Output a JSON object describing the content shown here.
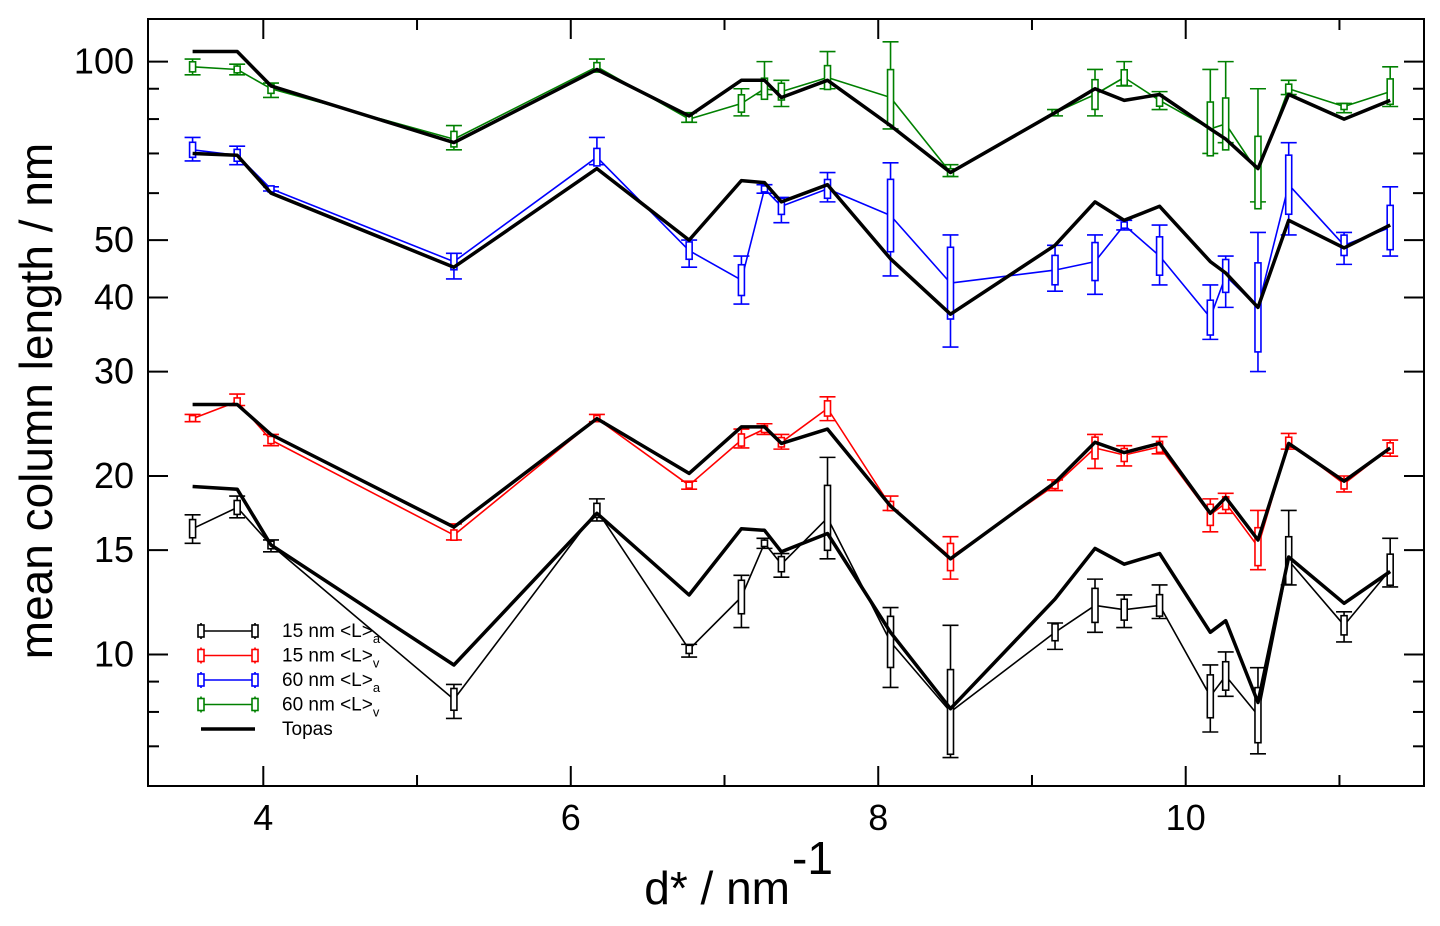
{
  "chart_data": {
    "type": "line",
    "title": "",
    "xlabel": "d* / nm",
    "xlabel_sup": "-1",
    "ylabel": "mean column length / nm",
    "xlim": [
      3.25,
      11.55
    ],
    "ylim": [
      6.0,
      118.0
    ],
    "yscale": "log",
    "grid": false,
    "legend_position": "bottom-left",
    "x_ticks": [
      4,
      6,
      8,
      10
    ],
    "y_ticks": [
      10,
      15,
      20,
      30,
      40,
      50,
      100
    ],
    "x_minor_ticks": [
      5,
      7,
      9,
      11
    ],
    "y_minor_ticks": [
      7,
      8,
      9,
      60,
      70,
      80,
      90
    ],
    "series": [
      {
        "name": "15 nm <L>a",
        "label": "15 nm <L>",
        "subscript": "a",
        "color": "#000000",
        "style": "errorbar",
        "x": [
          3.54,
          3.83,
          4.05,
          5.24,
          6.17,
          6.77,
          7.11,
          7.26,
          7.37,
          7.67,
          8.08,
          8.47,
          9.15,
          9.41,
          9.6,
          9.83,
          10.16,
          10.26,
          10.47,
          10.67,
          11.03,
          11.33
        ],
        "y": [
          16.3,
          17.7,
          15.3,
          8.4,
          17.5,
          10.2,
          12.5,
          15.4,
          14.2,
          17.0,
          10.5,
          8.0,
          10.9,
          12.1,
          11.9,
          12.1,
          8.5,
          9.2,
          7.9,
          14.4,
          11.2,
          13.9
        ],
        "err_low": [
          15.4,
          17.0,
          14.9,
          7.8,
          16.8,
          9.9,
          11.1,
          15.1,
          13.5,
          14.5,
          8.8,
          6.7,
          10.2,
          10.9,
          11.1,
          11.5,
          7.4,
          8.5,
          6.8,
          13.1,
          10.5,
          13.0
        ],
        "err_high": [
          17.2,
          18.5,
          15.6,
          8.9,
          18.3,
          10.4,
          13.6,
          15.7,
          14.8,
          21.5,
          12.0,
          11.2,
          11.3,
          13.4,
          12.6,
          13.1,
          9.6,
          10.1,
          9.5,
          17.5,
          11.8,
          15.7
        ]
      },
      {
        "name": "15 nm <L>v",
        "label": "15 nm <L>",
        "subscript": "v",
        "color": "#ff0000",
        "style": "errorbar",
        "x": [
          3.54,
          3.83,
          4.05,
          5.24,
          6.17,
          6.77,
          7.11,
          7.26,
          7.37,
          7.67,
          8.08,
          8.47,
          9.15,
          9.41,
          9.6,
          9.83,
          10.16,
          10.26,
          10.47,
          10.67,
          11.03,
          11.33
        ],
        "y": [
          25.0,
          26.7,
          23.0,
          15.9,
          25.0,
          19.3,
          23.0,
          24.0,
          22.8,
          26.0,
          17.8,
          14.6,
          19.3,
          22.3,
          21.7,
          22.4,
          17.2,
          18.0,
          15.2,
          22.8,
          19.4,
          22.3
        ],
        "err_low": [
          24.7,
          26.3,
          22.5,
          15.6,
          24.7,
          19.0,
          22.3,
          23.5,
          22.2,
          24.8,
          17.5,
          13.4,
          18.9,
          20.6,
          20.8,
          21.8,
          16.1,
          17.3,
          13.9,
          22.2,
          18.8,
          21.6
        ],
        "err_high": [
          25.4,
          27.5,
          23.5,
          16.6,
          25.4,
          19.6,
          24.0,
          24.5,
          23.5,
          27.2,
          18.5,
          15.8,
          19.7,
          23.5,
          22.5,
          23.3,
          18.3,
          18.7,
          17.5,
          23.6,
          20.0,
          23.0
        ]
      },
      {
        "name": "60 nm <L>a",
        "label": "60 nm <L>",
        "subscript": "a",
        "color": "#0000ff",
        "style": "errorbar",
        "x": [
          3.54,
          3.83,
          4.05,
          5.24,
          6.17,
          6.77,
          7.11,
          7.26,
          7.37,
          7.67,
          8.08,
          8.47,
          9.15,
          9.41,
          9.6,
          9.83,
          10.16,
          10.26,
          10.47,
          10.67,
          11.03,
          11.33
        ],
        "y": [
          71.0,
          69.5,
          61.0,
          46.0,
          69.0,
          48.0,
          42.8,
          61.0,
          57.0,
          61.0,
          55.0,
          42.3,
          44.5,
          46.0,
          53.0,
          47.0,
          37.0,
          43.5,
          38.5,
          62.0,
          49.0,
          52.5
        ],
        "err_low": [
          68.0,
          67.0,
          60.5,
          43.0,
          67.0,
          45.0,
          39.0,
          60.0,
          53.5,
          58.0,
          43.5,
          33.0,
          41.0,
          40.5,
          52.0,
          42.0,
          34.0,
          38.5,
          30.0,
          51.0,
          45.5,
          47.0
        ],
        "err_high": [
          74.5,
          72.0,
          61.5,
          47.5,
          74.5,
          50.0,
          47.0,
          62.0,
          59.0,
          65.0,
          67.5,
          51.0,
          49.0,
          51.0,
          54.0,
          53.0,
          42.0,
          47.0,
          51.5,
          73.0,
          51.5,
          61.5
        ]
      },
      {
        "name": "60 nm <L>v",
        "label": "60 nm <L>",
        "subscript": "v",
        "color": "#008000",
        "style": "errorbar",
        "x": [
          3.54,
          3.83,
          4.05,
          5.24,
          6.17,
          6.77,
          7.11,
          7.26,
          7.37,
          7.67,
          8.08,
          8.47,
          9.15,
          9.41,
          9.6,
          9.83,
          10.16,
          10.26,
          10.47,
          10.67,
          11.03,
          11.33
        ],
        "y": [
          98.0,
          97.0,
          90.0,
          74.0,
          98.0,
          80.0,
          85.0,
          90.0,
          89.0,
          94.0,
          87.0,
          65.0,
          82.0,
          88.0,
          94.0,
          86.0,
          77.0,
          78.5,
          65.0,
          90.0,
          84.0,
          89.0
        ],
        "err_low": [
          95.0,
          95.0,
          87.0,
          71.0,
          96.0,
          79.0,
          81.0,
          88.0,
          84.0,
          90.0,
          77.0,
          64.0,
          81.0,
          81.0,
          91.0,
          83.0,
          70.0,
          73.0,
          58.0,
          88.0,
          82.0,
          84.0
        ],
        "err_high": [
          101.0,
          99.0,
          92.0,
          78.0,
          101.0,
          82.0,
          90.0,
          100.0,
          93.0,
          104.0,
          108.0,
          67.0,
          83.0,
          97.0,
          100.0,
          89.0,
          97.0,
          100.0,
          90.0,
          93.0,
          85.0,
          98.0
        ]
      },
      {
        "name": "Topas",
        "label": "Topas",
        "color": "#000000",
        "style": "line",
        "x": [
          3.54,
          3.83,
          4.05,
          5.24,
          6.17,
          6.77,
          7.11,
          7.26,
          7.37,
          7.67,
          8.08,
          8.47,
          9.15,
          9.41,
          9.6,
          9.83,
          10.16,
          10.26,
          10.47,
          10.67,
          11.03,
          11.33
        ],
        "y_series": [
          [
            19.2,
            19.0,
            15.3,
            9.6,
            17.3,
            12.6,
            16.3,
            16.2,
            14.9,
            16.0,
            10.9,
            8.1,
            12.4,
            15.1,
            14.2,
            14.8,
            10.9,
            11.4,
            8.3,
            14.6,
            12.2,
            13.8
          ],
          [
            26.4,
            26.4,
            23.5,
            16.4,
            25.0,
            20.2,
            24.2,
            24.2,
            22.7,
            24.0,
            17.8,
            14.5,
            19.5,
            22.8,
            21.9,
            22.7,
            17.3,
            18.4,
            15.6,
            22.7,
            19.6,
            22.3
          ],
          [
            70.0,
            69.5,
            60.0,
            45.0,
            66.0,
            50.0,
            63.0,
            62.5,
            58.0,
            62.0,
            46.5,
            37.5,
            49.0,
            58.0,
            54.0,
            57.0,
            46.0,
            44.0,
            38.5,
            54.0,
            48.5,
            53.0
          ],
          [
            104.0,
            104.0,
            91.0,
            73.0,
            97.0,
            81.0,
            93.0,
            93.0,
            87.0,
            93.0,
            78.0,
            65.0,
            82.0,
            90.0,
            86.0,
            88.0,
            77.0,
            74.0,
            66.0,
            88.0,
            80.0,
            86.0
          ]
        ]
      }
    ]
  }
}
